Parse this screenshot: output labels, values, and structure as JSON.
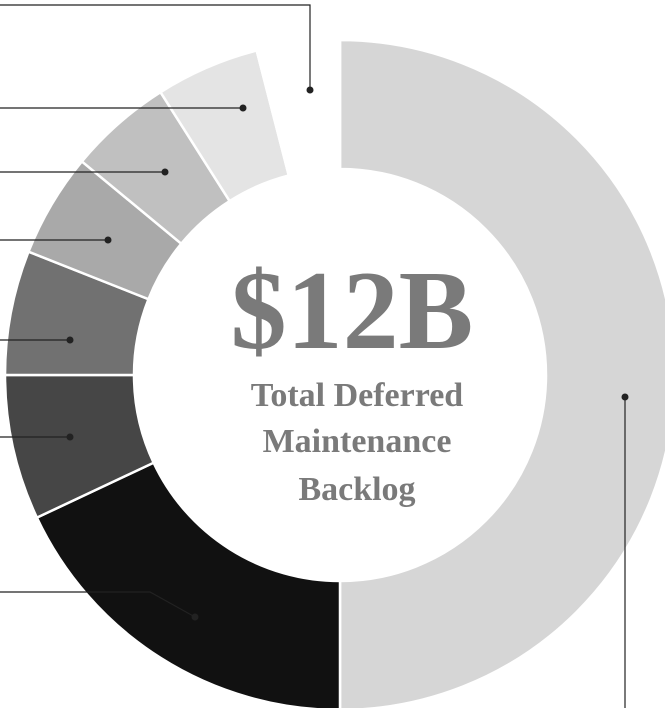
{
  "chart_data": {
    "type": "donut",
    "headline": "$12B",
    "subtitle_lines": [
      "Total Deferred",
      "Maintenance",
      "Backlog"
    ],
    "categories": [
      null,
      null,
      null,
      null,
      null,
      null,
      null,
      null
    ],
    "values": [
      50,
      18,
      7,
      6,
      5,
      5,
      5,
      4
    ],
    "colors": [
      "#d6d6d6",
      "#111111",
      "#464646",
      "#717171",
      "#a9a9a9",
      "#c0c0c0",
      "#e4e4e4",
      "#ffffff"
    ]
  }
}
